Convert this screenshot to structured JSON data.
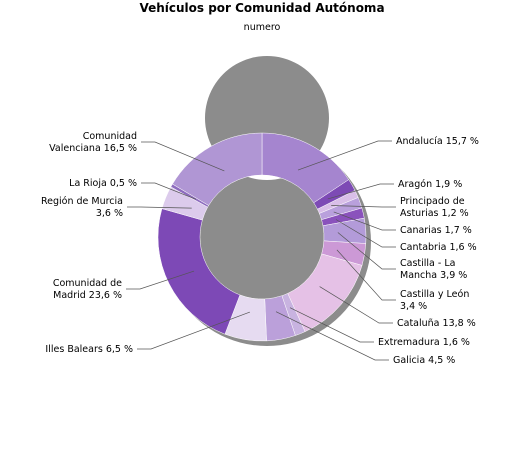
{
  "chart_data": {
    "type": "pie",
    "title": "Vehículos por Comunidad Autónoma",
    "subtitle": "numero",
    "slices": [
      {
        "name": "Andalucía",
        "value": 15.7,
        "label_lines": [
          "Andalucía 15,7 %"
        ],
        "color": "#a585cf"
      },
      {
        "name": "Aragón",
        "value": 1.9,
        "label_lines": [
          "Aragón 1,9 %"
        ],
        "color": "#7d4ab5"
      },
      {
        "name": "Principado de Asturias",
        "value": 1.2,
        "label_lines": [
          "Principado de",
          "Asturias 1,2 %"
        ],
        "color": "#d9bfe8"
      },
      {
        "name": "Canarias",
        "value": 1.7,
        "label_lines": [
          "Canarias 1,7 %"
        ],
        "color": "#b9a0dc"
      },
      {
        "name": "Cantabria",
        "value": 1.6,
        "label_lines": [
          "Cantabria 1,6 %"
        ],
        "color": "#8a52bc"
      },
      {
        "name": "Castilla - La Mancha",
        "value": 3.9,
        "label_lines": [
          "Castilla - La",
          "Mancha 3,9 %"
        ],
        "color": "#b39bd9"
      },
      {
        "name": "Castilla y León",
        "value": 3.4,
        "label_lines": [
          "Castilla y León",
          "3,4 %"
        ],
        "color": "#cc99d6"
      },
      {
        "name": "Cataluña",
        "value": 13.8,
        "label_lines": [
          "Cataluña 13,8 %"
        ],
        "color": "#e5c1e6"
      },
      {
        "name": "Extremadura",
        "value": 1.6,
        "label_lines": [
          "Extremadura 1,6 %"
        ],
        "color": "#c8b3e0"
      },
      {
        "name": "Galicia",
        "value": 4.5,
        "label_lines": [
          "Galicia 4,5 %"
        ],
        "color": "#bba0da"
      },
      {
        "name": "Illes Balears",
        "value": 6.5,
        "label_lines": [
          "Illes Balears 6,5 %"
        ],
        "color": "#e6dbf1"
      },
      {
        "name": "Comunidad de Madrid",
        "value": 23.6,
        "label_lines": [
          "Comunidad de",
          "Madrid 23,6 %"
        ],
        "color": "#7d49b6"
      },
      {
        "name": "Región de Murcia",
        "value": 3.6,
        "label_lines": [
          "Región de Murcia",
          "3,6 %"
        ],
        "color": "#dccbec"
      },
      {
        "name": "La Rioja",
        "value": 0.5,
        "label_lines": [
          "La Rioja 0,5 %"
        ],
        "color": "#8e6cbf"
      },
      {
        "name": "Comunidad Valenciana",
        "value": 16.5,
        "label_lines": [
          "Comunidad",
          "Valenciana 16,5 %"
        ],
        "color": "#b096d4"
      }
    ]
  }
}
